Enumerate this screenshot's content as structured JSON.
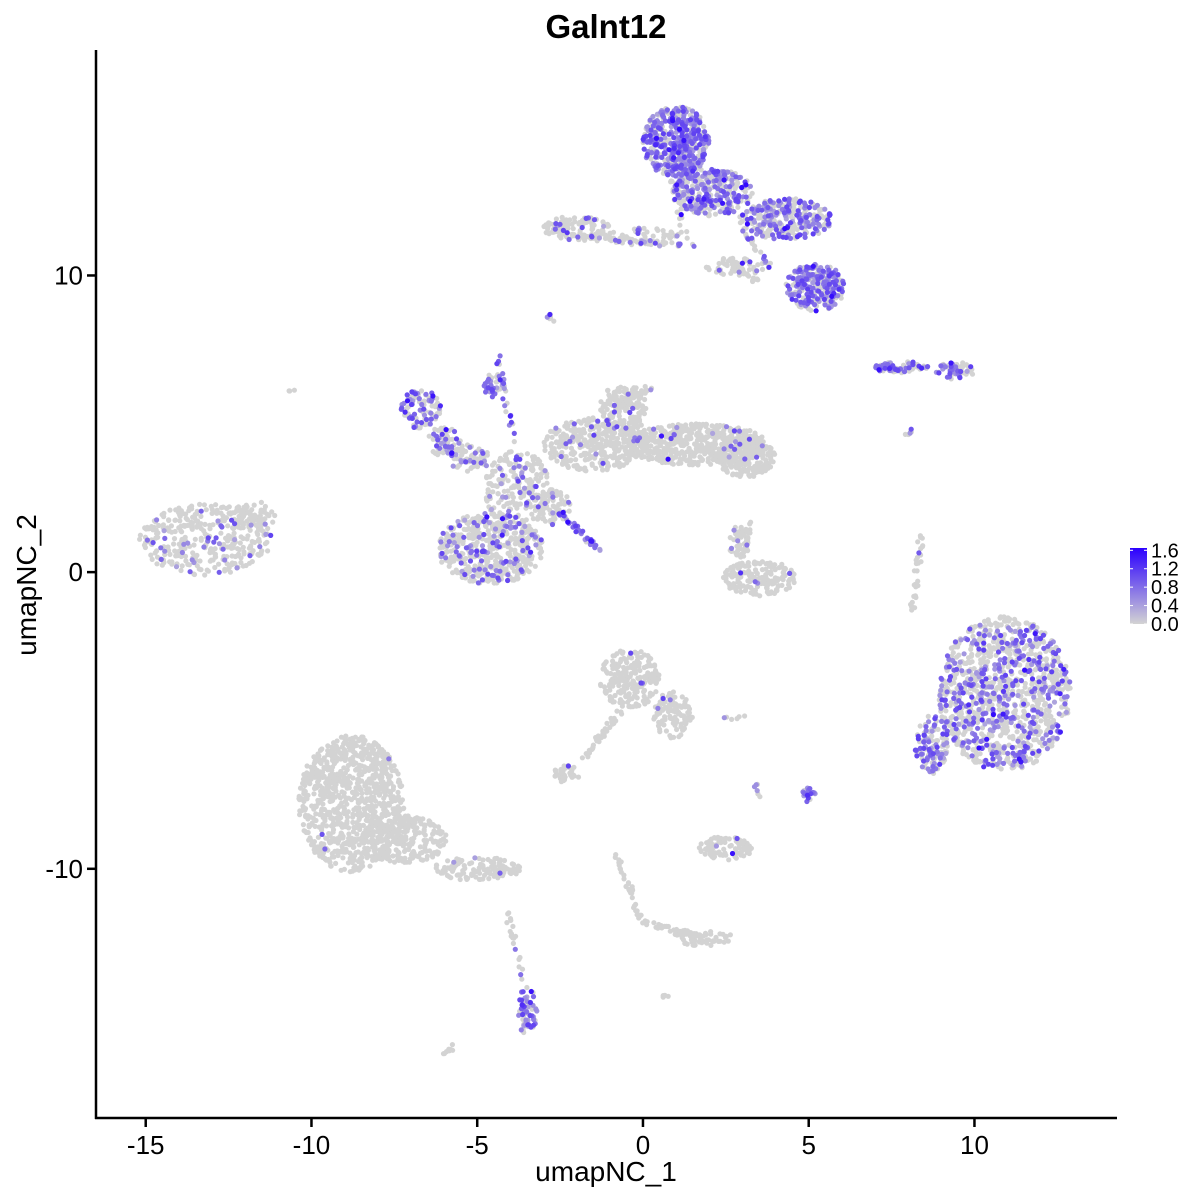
{
  "chart_data": {
    "type": "scatter",
    "title": "Galnt12",
    "xlabel": "umapNC_1",
    "ylabel": "umapNC_2",
    "xlim": [
      -16.5,
      14.3
    ],
    "ylim": [
      -18.4,
      17.6
    ],
    "x_ticks": [
      -15,
      -10,
      -5,
      0,
      5,
      10
    ],
    "x_tick_labels": [
      "-15",
      "-10",
      "-5",
      "0",
      "5",
      "10"
    ],
    "y_ticks": [
      -10,
      0,
      10
    ],
    "y_tick_labels": [
      "-10",
      "0",
      "10"
    ],
    "grid": false,
    "legend_position": "right",
    "color_scale": {
      "low_color": "#d3d3d3",
      "high_color": "#2b00ff",
      "min": 0.0,
      "max": 1.65,
      "ticks": [
        0.0,
        0.4,
        0.8,
        1.2,
        1.6
      ],
      "tick_labels": [
        "0.0",
        "0.4",
        "0.8",
        "1.2",
        "1.6"
      ]
    },
    "clusters": [
      {
        "cx": -13.2,
        "cy": 1.1,
        "rx": 2.0,
        "ry": 1.2,
        "n": 350,
        "frac": 0.12
      },
      {
        "cx": -11.8,
        "cy": 1.9,
        "rx": 0.7,
        "ry": 0.5,
        "n": 60,
        "frac": 0.08
      },
      {
        "cx": -6.7,
        "cy": 5.5,
        "rx": 0.6,
        "ry": 0.7,
        "n": 90,
        "frac": 0.5
      },
      {
        "cx": -6.0,
        "cy": 4.4,
        "rx": 0.5,
        "ry": 0.5,
        "n": 60,
        "frac": 0.35
      },
      {
        "cx": -5.2,
        "cy": 3.8,
        "rx": 0.6,
        "ry": 0.5,
        "n": 70,
        "frac": 0.3
      },
      {
        "cx": -3.8,
        "cy": 2.8,
        "rx": 1.0,
        "ry": 1.3,
        "n": 200,
        "frac": 0.12
      },
      {
        "cx": -4.6,
        "cy": 0.8,
        "rx": 1.6,
        "ry": 1.2,
        "n": 500,
        "frac": 0.22
      },
      {
        "cx": -4.5,
        "cy": 6.3,
        "rx": 0.3,
        "ry": 0.4,
        "n": 30,
        "frac": 0.7
      },
      {
        "cx": -1.5,
        "cy": 4.3,
        "rx": 1.5,
        "ry": 0.9,
        "n": 320,
        "frac": 0.04
      },
      {
        "cx": -0.6,
        "cy": 5.5,
        "rx": 0.7,
        "ry": 0.9,
        "n": 160,
        "frac": 0.04
      },
      {
        "cx": 1.6,
        "cy": 4.3,
        "rx": 2.2,
        "ry": 0.7,
        "n": 520,
        "frac": 0.02
      },
      {
        "cx": 3.1,
        "cy": 3.9,
        "rx": 0.9,
        "ry": 0.7,
        "n": 200,
        "frac": 0.01
      },
      {
        "cx": -2.7,
        "cy": 2.2,
        "rx": 0.5,
        "ry": 0.6,
        "n": 80,
        "frac": 0.1
      },
      {
        "cx": 1.0,
        "cy": 14.5,
        "rx": 1.0,
        "ry": 1.2,
        "n": 480,
        "frac": 0.7
      },
      {
        "cx": 2.1,
        "cy": 12.8,
        "rx": 1.2,
        "ry": 0.8,
        "n": 300,
        "frac": 0.5
      },
      {
        "cx": 4.3,
        "cy": 11.9,
        "rx": 1.4,
        "ry": 0.7,
        "n": 300,
        "frac": 0.45
      },
      {
        "cx": 5.2,
        "cy": 9.6,
        "rx": 0.9,
        "ry": 0.8,
        "n": 250,
        "frac": 0.65
      },
      {
        "cx": -2.0,
        "cy": 11.6,
        "rx": 1.0,
        "ry": 0.4,
        "n": 120,
        "frac": 0.15
      },
      {
        "cx": 0.0,
        "cy": 11.3,
        "rx": 1.2,
        "ry": 0.3,
        "n": 60,
        "frac": 0.2
      },
      {
        "cx": 2.8,
        "cy": 10.3,
        "rx": 0.9,
        "ry": 0.3,
        "n": 50,
        "frac": 0.05
      },
      {
        "cx": 7.8,
        "cy": 6.9,
        "rx": 0.8,
        "ry": 0.2,
        "n": 60,
        "frac": 0.55
      },
      {
        "cx": 9.4,
        "cy": 6.8,
        "rx": 0.6,
        "ry": 0.3,
        "n": 50,
        "frac": 0.6
      },
      {
        "cx": 10.9,
        "cy": -4.1,
        "rx": 2.0,
        "ry": 2.6,
        "n": 1100,
        "frac": 0.33
      },
      {
        "cx": 8.7,
        "cy": -5.8,
        "rx": 0.5,
        "ry": 1.0,
        "n": 120,
        "frac": 0.45
      },
      {
        "cx": 3.5,
        "cy": -0.2,
        "rx": 1.1,
        "ry": 0.6,
        "n": 180,
        "frac": 0.02
      },
      {
        "cx": 2.9,
        "cy": 1.0,
        "rx": 0.3,
        "ry": 0.6,
        "n": 40,
        "frac": 0.05
      },
      {
        "cx": -0.4,
        "cy": -3.6,
        "rx": 0.9,
        "ry": 1.0,
        "n": 220,
        "frac": 0.03
      },
      {
        "cx": 0.9,
        "cy": -4.8,
        "rx": 0.6,
        "ry": 0.8,
        "n": 110,
        "frac": 0.05
      },
      {
        "cx": -2.3,
        "cy": -6.8,
        "rx": 0.4,
        "ry": 0.3,
        "n": 40,
        "frac": 0.05
      },
      {
        "cx": 5.0,
        "cy": -7.5,
        "rx": 0.2,
        "ry": 0.3,
        "n": 20,
        "frac": 0.8
      },
      {
        "cx": 2.5,
        "cy": -9.3,
        "rx": 0.8,
        "ry": 0.4,
        "n": 90,
        "frac": 0.04
      },
      {
        "cx": -8.8,
        "cy": -7.8,
        "rx": 1.6,
        "ry": 2.3,
        "n": 900,
        "frac": 0.004
      },
      {
        "cx": -7.2,
        "cy": -9.0,
        "rx": 1.3,
        "ry": 0.8,
        "n": 250,
        "frac": 0.004
      },
      {
        "cx": -5.0,
        "cy": -10.0,
        "rx": 1.3,
        "ry": 0.4,
        "n": 120,
        "frac": 0.02
      },
      {
        "cx": -3.5,
        "cy": -14.8,
        "rx": 0.3,
        "ry": 0.8,
        "n": 60,
        "frac": 0.6
      },
      {
        "cx": 1.8,
        "cy": -12.3,
        "rx": 0.9,
        "ry": 0.3,
        "n": 50,
        "frac": 0.0
      }
    ],
    "segments": [
      {
        "x1": -4.4,
        "y1": 7.3,
        "x2": -3.6,
        "y2": 2.6,
        "n": 35,
        "frac": 0.6
      },
      {
        "x1": -2.5,
        "y1": 2.0,
        "x2": -1.2,
        "y2": 0.6,
        "n": 40,
        "frac": 0.9
      },
      {
        "x1": -2.2,
        "y1": 11.3,
        "x2": 1.6,
        "y2": 11.0,
        "n": 40,
        "frac": 0.3
      },
      {
        "x1": -0.8,
        "y1": 5.6,
        "x2": 0.2,
        "y2": 6.2,
        "n": 30,
        "frac": 0.02
      },
      {
        "x1": 2.6,
        "y1": 10.4,
        "x2": 3.4,
        "y2": 9.8,
        "n": 20,
        "frac": 0.0
      },
      {
        "x1": 8.4,
        "y1": 1.2,
        "x2": 8.1,
        "y2": -1.4,
        "n": 30,
        "frac": 0.1
      },
      {
        "x1": 3.2,
        "y1": 1.7,
        "x2": 3.0,
        "y2": 0.4,
        "n": 20,
        "frac": 0.05
      },
      {
        "x1": -0.7,
        "y1": -4.7,
        "x2": -1.8,
        "y2": -6.3,
        "n": 40,
        "frac": 0.02
      },
      {
        "x1": -0.8,
        "y1": -9.5,
        "x2": 0.0,
        "y2": -11.8,
        "n": 35,
        "frac": 0.0
      },
      {
        "x1": 0.0,
        "y1": -11.8,
        "x2": 2.5,
        "y2": -12.5,
        "n": 40,
        "frac": 0.0
      },
      {
        "x1": -4.1,
        "y1": -11.5,
        "x2": -3.6,
        "y2": -13.8,
        "n": 20,
        "frac": 0.2
      },
      {
        "x1": 0.9,
        "y1": 13.2,
        "x2": 1.3,
        "y2": 11.1,
        "n": 20,
        "frac": 0.3
      },
      {
        "x1": 3.0,
        "y1": 11.6,
        "x2": 3.8,
        "y2": 10.3,
        "n": 25,
        "frac": 0.3
      },
      {
        "x1": 8.3,
        "y1": 4.8,
        "x2": 7.9,
        "y2": 4.6,
        "n": 6,
        "frac": 0.3
      },
      {
        "x1": 3.0,
        "y1": -4.9,
        "x2": 2.4,
        "y2": -4.9,
        "n": 6,
        "frac": 0.4
      },
      {
        "x1": 3.4,
        "y1": -7.1,
        "x2": 3.5,
        "y2": -7.6,
        "n": 6,
        "frac": 0.5
      },
      {
        "x1": -2.9,
        "y1": 8.7,
        "x2": -2.7,
        "y2": 8.5,
        "n": 8,
        "frac": 0.4
      },
      {
        "x1": -10.6,
        "y1": 6.1,
        "x2": -10.5,
        "y2": 6.0,
        "n": 3,
        "frac": 0.0
      },
      {
        "x1": -6.0,
        "y1": -16.2,
        "x2": -5.7,
        "y2": -16.0,
        "n": 8,
        "frac": 0.0
      },
      {
        "x1": 0.7,
        "y1": -14.2,
        "x2": 0.7,
        "y2": -14.3,
        "n": 4,
        "frac": 0.0
      }
    ]
  }
}
